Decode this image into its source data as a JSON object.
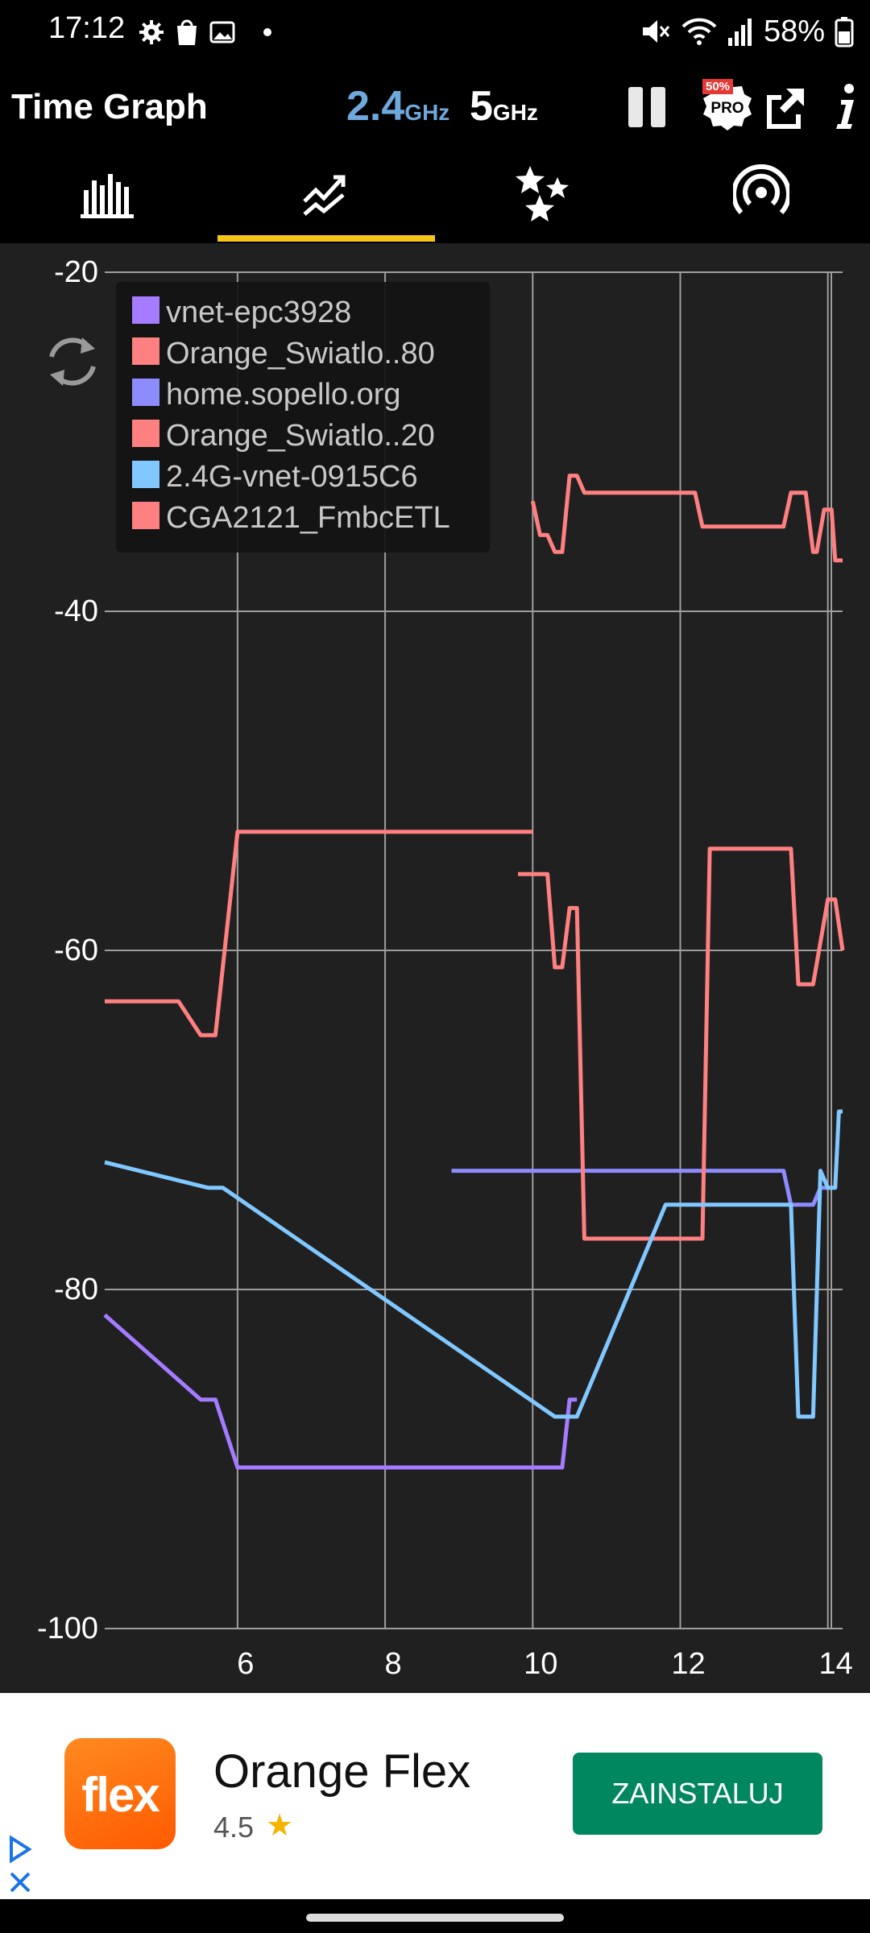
{
  "status_bar": {
    "time": "17:12",
    "battery": "58%",
    "icons": [
      "gear-icon",
      "shopping-bag-icon",
      "image-icon",
      "dot-icon",
      "mute-icon",
      "wifi-icon",
      "signal-icon",
      "battery-icon"
    ]
  },
  "app_bar": {
    "title": "Time Graph",
    "band_24_value": "2.4",
    "band_24_unit": "GHz",
    "band_5_value": "5",
    "band_5_unit": "GHz",
    "pro_badge": "PRO",
    "pro_discount": "50%",
    "icons": [
      "pause-icon",
      "pro-icon",
      "share-icon",
      "info-icon"
    ]
  },
  "tabs": {
    "items": [
      "channel-graph-icon",
      "time-graph-icon",
      "channel-rating-icon",
      "ap-list-icon"
    ],
    "active_index": 1,
    "indicator_color": "#f5c518"
  },
  "chart_data": {
    "type": "line",
    "title": "",
    "xlabel": "",
    "ylabel": "",
    "xlim": [
      4.2,
      14.2
    ],
    "ylim": [
      -100,
      -20
    ],
    "x_ticks": [
      "6",
      "8",
      "10",
      "12",
      "14"
    ],
    "y_ticks": [
      "-20",
      "-40",
      "-60",
      "-80",
      "-100"
    ],
    "grid": true,
    "legend_position": "top-left",
    "series": [
      {
        "name": "vnet-epc3928",
        "color": "#a57bff",
        "points": [
          [
            4.2,
            -81.5
          ],
          [
            5.5,
            -86.5
          ],
          [
            5.7,
            -86.5
          ],
          [
            6.0,
            -90.5
          ],
          [
            10.4,
            -90.5
          ],
          [
            10.5,
            -86.5
          ],
          [
            10.6,
            -86.5
          ]
        ]
      },
      {
        "name": "Orange_Swiatlo..80",
        "color": "#ff8080",
        "points": [
          [
            10.0,
            -33.5
          ],
          [
            10.1,
            -35.5
          ],
          [
            10.2,
            -35.5
          ],
          [
            10.3,
            -36.5
          ],
          [
            10.4,
            -36.5
          ],
          [
            10.5,
            -32.0
          ],
          [
            10.6,
            -32.0
          ],
          [
            10.7,
            -33.0
          ],
          [
            12.2,
            -33.0
          ],
          [
            12.3,
            -35.0
          ],
          [
            13.4,
            -35.0
          ],
          [
            13.5,
            -33.0
          ],
          [
            13.7,
            -33.0
          ],
          [
            13.8,
            -36.5
          ],
          [
            13.85,
            -36.5
          ],
          [
            13.95,
            -34.0
          ],
          [
            14.05,
            -34.0
          ],
          [
            14.1,
            -37.0
          ],
          [
            14.2,
            -37.0
          ]
        ]
      },
      {
        "name": "home.sopello.org",
        "color": "#8c8cff",
        "points": [
          [
            8.9,
            -73.0
          ],
          [
            13.4,
            -73.0
          ],
          [
            13.5,
            -75.0
          ],
          [
            13.8,
            -75.0
          ],
          [
            13.9,
            -74.0
          ],
          [
            14.0,
            -74.0
          ]
        ]
      },
      {
        "name": "Orange_Swiatlo..20",
        "color": "#ff8080",
        "points": [
          [
            9.8,
            -55.5
          ],
          [
            10.2,
            -55.5
          ],
          [
            10.3,
            -61.0
          ],
          [
            10.4,
            -61.0
          ],
          [
            10.5,
            -57.5
          ],
          [
            10.6,
            -57.5
          ],
          [
            10.7,
            -77.0
          ],
          [
            12.3,
            -77.0
          ],
          [
            12.4,
            -54.0
          ],
          [
            13.5,
            -54.0
          ],
          [
            13.6,
            -62.0
          ],
          [
            13.8,
            -62.0
          ],
          [
            14.0,
            -57.0
          ],
          [
            14.1,
            -57.0
          ],
          [
            14.2,
            -60.0
          ]
        ]
      },
      {
        "name": "2.4G-vnet-0915C6",
        "color": "#80c8ff",
        "points": [
          [
            4.2,
            -72.5
          ],
          [
            5.6,
            -74.0
          ],
          [
            5.8,
            -74.0
          ],
          [
            10.3,
            -87.5
          ],
          [
            10.6,
            -87.5
          ],
          [
            11.8,
            -75.0
          ],
          [
            12.3,
            -75.0
          ],
          [
            13.5,
            -75.0
          ],
          [
            13.6,
            -87.5
          ],
          [
            13.8,
            -87.5
          ],
          [
            13.9,
            -73.0
          ],
          [
            14.0,
            -74.0
          ],
          [
            14.1,
            -74.0
          ],
          [
            14.15,
            -69.5
          ],
          [
            14.2,
            -69.5
          ]
        ]
      },
      {
        "name": "CGA2121_FmbcETL",
        "color": "#ff8080",
        "points": [
          [
            4.2,
            -63.0
          ],
          [
            5.2,
            -63.0
          ],
          [
            5.5,
            -65.0
          ],
          [
            5.7,
            -65.0
          ],
          [
            6.0,
            -53.0
          ],
          [
            10.0,
            -53.0
          ]
        ]
      }
    ]
  },
  "ad": {
    "app_name": "Orange Flex",
    "logo_text": "flex",
    "rating": "4.5",
    "star": "★",
    "button_label": "ZAINSTALUJ",
    "button_color": "#01875f",
    "icons": [
      "adchoices-icon",
      "close-icon"
    ]
  }
}
